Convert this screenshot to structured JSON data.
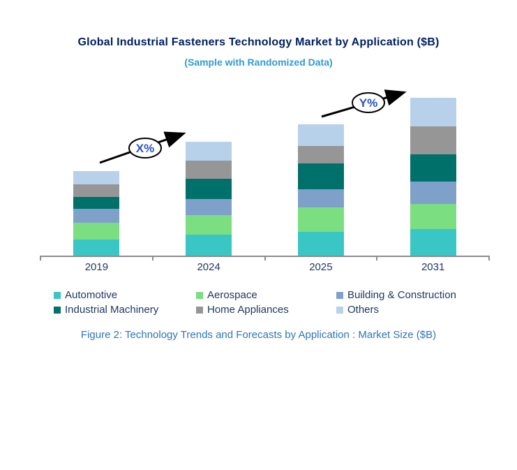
{
  "title": "Global Industrial Fasteners Technology Market by Application ($B)",
  "subtitle": "(Sample with Randomized Data)",
  "caption": "Figure 2: Technology Trends and Forecasts by Application : Market Size ($B)",
  "annotations": [
    {
      "label": "X%"
    },
    {
      "label": "Y%"
    }
  ],
  "colors": {
    "title_text": "#002060",
    "subtitle_text": "#2E9BD6",
    "caption_text": "#2E75B6",
    "axis_line": "#8C8C8C",
    "axis_label_text": "#1F3864",
    "annotation_text": "#2A52BE"
  },
  "chart_data": {
    "type": "bar",
    "stacked": true,
    "title": "Global Industrial Fasteners Technology Market by Application ($B)",
    "subtitle": "(Sample with Randomized Data)",
    "categories": [
      "2019",
      "2024",
      "2025",
      "2031"
    ],
    "series": [
      {
        "name": "Automotive",
        "color": "#3AC6C4",
        "values": [
          23,
          30,
          34,
          38
        ]
      },
      {
        "name": "Aerospace",
        "color": "#7BDE80",
        "values": [
          24,
          28,
          35,
          36
        ]
      },
      {
        "name": "Building & Construction",
        "color": "#7FA1C9",
        "values": [
          20,
          23,
          26,
          32
        ]
      },
      {
        "name": "Industrial Machinery",
        "color": "#00716A",
        "values": [
          17,
          29,
          37,
          39
        ]
      },
      {
        "name": "Home Appliances",
        "color": "#969696",
        "values": [
          18,
          26,
          25,
          40
        ]
      },
      {
        "name": "Others",
        "color": "#B8D1EA",
        "values": [
          19,
          27,
          31,
          41
        ]
      }
    ],
    "totals": [
      121,
      163,
      188,
      226
    ],
    "value_units": "relative height, $B axis not labeled",
    "ylim": [
      0,
      246
    ],
    "y_axis_visible": false,
    "value_labels_visible": false,
    "grid": false,
    "legend_position": "bottom",
    "legend_rows": [
      [
        "Automotive",
        "Aerospace",
        "Building & Construction"
      ],
      [
        "Industrial Machinery",
        "Home Appliances",
        "Others"
      ]
    ],
    "annotations": [
      {
        "label": "X%",
        "between": [
          "2019",
          "2024"
        ]
      },
      {
        "label": "Y%",
        "between": [
          "2025",
          "2031"
        ]
      }
    ]
  }
}
